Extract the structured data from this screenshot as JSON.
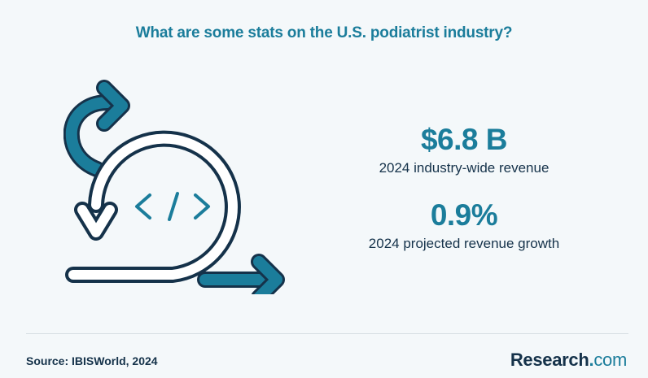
{
  "header": {
    "title": "What are some stats on the U.S. podiatrist industry?"
  },
  "illustration": {
    "icon": "agile-code-cycle-icon",
    "code_glyph": "< / >",
    "colors": {
      "outline": "#15324a",
      "accent": "#1b7d9b"
    }
  },
  "stats": [
    {
      "value": "$6.8 B",
      "label": "2024 industry-wide revenue"
    },
    {
      "value": "0.9%",
      "label": "2024 projected revenue growth"
    }
  ],
  "footer": {
    "source": "Source:  IBISWorld, 2024",
    "logo": {
      "main": "Research",
      "dot": ".",
      "tld": "com"
    }
  },
  "colors": {
    "background": "#f4f8fa",
    "accent": "#1b7d9b",
    "text_dark": "#15324a"
  }
}
